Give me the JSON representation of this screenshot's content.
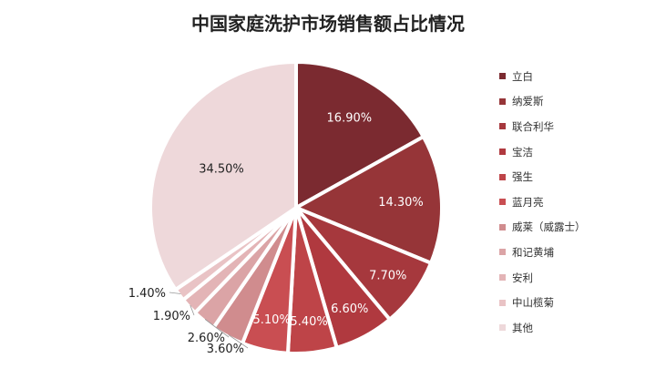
{
  "chart_data": {
    "type": "pie",
    "title": "中国家庭洗护市场销售额占比情况",
    "categories": [
      "立白",
      "纳爱斯",
      "联合利华",
      "宝洁",
      "强生",
      "蓝月亮",
      "威莱（威露士）",
      "和记黄埔",
      "安利",
      "中山榄菊",
      "其他"
    ],
    "values": [
      16.9,
      14.3,
      7.7,
      6.6,
      5.4,
      5.1,
      3.6,
      2.6,
      1.9,
      1.4,
      34.5
    ],
    "value_labels": [
      "16.90%",
      "14.30%",
      "7.70%",
      "6.60%",
      "5.40%",
      "5.10%",
      "3.60%",
      "2.60%",
      "1.90%",
      "1.40%",
      "34.50%"
    ],
    "colors": [
      "#7b2a30",
      "#963538",
      "#a6383d",
      "#b0393f",
      "#be4448",
      "#c94e52",
      "#d08c8e",
      "#dba4a6",
      "#e3b4b6",
      "#e9c3c5",
      "#eed8da"
    ],
    "label_colors": [
      "#ffffff",
      "#ffffff",
      "#ffffff",
      "#ffffff",
      "#ffffff",
      "#ffffff",
      "#222222",
      "#222222",
      "#222222",
      "#222222",
      "#222222"
    ],
    "legend_position": "right",
    "start_angle_deg": 0,
    "direction": "clockwise"
  }
}
